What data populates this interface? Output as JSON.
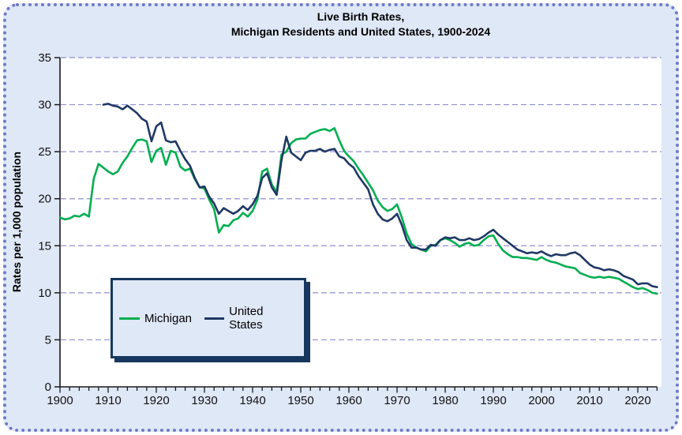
{
  "title": {
    "line1": "Live Birth Rates,",
    "line2": "Michigan Residents and United States, 1900-2024"
  },
  "colors": {
    "panel_background": "#dfe8f6",
    "plot_background": "#ffffff",
    "gridline": "#8f8fd0",
    "axis": "#1a1a1a",
    "panel_border": "#6e79c7",
    "legend_border": "#17375e",
    "michigan_line": "#00ae50",
    "united_states_line": "#1f3864"
  },
  "chart_data": {
    "type": "line",
    "title": "Live Birth Rates, Michigan Residents and United States, 1900-2024",
    "xlabel": "",
    "ylabel": "Rates per 1,000 population",
    "xlim": [
      1900,
      2024
    ],
    "ylim": [
      0,
      35
    ],
    "grid": "horizontal dashed",
    "legend_position": "inside lower-left box",
    "y_tick_labels": [
      0,
      5,
      10,
      15,
      20,
      25,
      30,
      35
    ],
    "x_tick_labels": [
      1900,
      1910,
      1920,
      1930,
      1940,
      1950,
      1960,
      1970,
      1980,
      1990,
      2000,
      2010,
      2020
    ],
    "x_minor_tick_step": 2,
    "series": [
      {
        "name": "Michigan",
        "color": "#00ae50",
        "start_year": 1900,
        "values": [
          18.0,
          17.8,
          17.9,
          18.2,
          18.1,
          18.4,
          18.1,
          22.1,
          23.7,
          23.3,
          22.9,
          22.6,
          22.9,
          23.8,
          24.5,
          25.4,
          26.2,
          26.3,
          26.1,
          23.9,
          25.1,
          25.4,
          23.6,
          25.1,
          24.9,
          23.4,
          23.0,
          23.2,
          22.1,
          21.2,
          21.1,
          19.9,
          18.9,
          16.4,
          17.2,
          17.1,
          17.7,
          17.9,
          18.5,
          18.1,
          18.7,
          19.9,
          22.9,
          23.2,
          21.5,
          20.7,
          24.7,
          25.0,
          25.9,
          26.3,
          26.4,
          26.4,
          26.9,
          27.1,
          27.3,
          27.4,
          27.2,
          27.5,
          26.2,
          25.1,
          24.5,
          24.0,
          23.2,
          22.5,
          21.7,
          20.9,
          19.8,
          19.1,
          18.7,
          18.9,
          19.4,
          18.0,
          16.3,
          15.2,
          14.8,
          14.6,
          14.4,
          15.0,
          15.1,
          15.6,
          15.8,
          15.6,
          15.3,
          14.9,
          15.2,
          15.3,
          15.0,
          15.1,
          15.6,
          16.0,
          16.1,
          15.2,
          14.5,
          14.1,
          13.8,
          13.8,
          13.7,
          13.7,
          13.6,
          13.5,
          13.8,
          13.5,
          13.3,
          13.2,
          13.0,
          12.8,
          12.7,
          12.6,
          12.1,
          11.9,
          11.7,
          11.6,
          11.7,
          11.6,
          11.7,
          11.6,
          11.5,
          11.2,
          10.9,
          10.6,
          10.4,
          10.5,
          10.3,
          10.0,
          9.9
        ]
      },
      {
        "name": "United States",
        "color": "#1f3864",
        "start_year": 1909,
        "values": [
          30.0,
          30.1,
          29.9,
          29.8,
          29.5,
          29.9,
          29.5,
          29.1,
          28.5,
          28.2,
          26.1,
          27.7,
          28.1,
          26.2,
          26.0,
          26.1,
          25.1,
          24.2,
          23.5,
          22.2,
          21.2,
          21.3,
          20.2,
          19.5,
          18.4,
          19.0,
          18.7,
          18.4,
          18.7,
          19.2,
          18.8,
          19.4,
          20.3,
          22.2,
          22.7,
          21.2,
          20.4,
          24.1,
          26.6,
          24.9,
          24.5,
          24.1,
          24.9,
          25.1,
          25.1,
          25.3,
          25.0,
          25.2,
          25.3,
          24.5,
          24.3,
          23.7,
          23.3,
          22.4,
          21.7,
          21.0,
          19.4,
          18.4,
          17.8,
          17.6,
          17.9,
          18.4,
          17.2,
          15.6,
          14.8,
          14.8,
          14.6,
          14.6,
          15.1,
          15.0,
          15.6,
          15.9,
          15.8,
          15.9,
          15.6,
          15.6,
          15.8,
          15.6,
          15.7,
          16.0,
          16.4,
          16.7,
          16.2,
          15.8,
          15.4,
          15.0,
          14.6,
          14.4,
          14.2,
          14.3,
          14.2,
          14.4,
          14.1,
          13.9,
          14.1,
          14.0,
          14.0,
          14.2,
          14.3,
          14.0,
          13.5,
          13.0,
          12.7,
          12.6,
          12.4,
          12.5,
          12.4,
          12.2,
          11.8,
          11.6,
          11.4,
          10.9,
          11.0,
          11.0,
          10.7,
          10.6
        ]
      }
    ]
  }
}
